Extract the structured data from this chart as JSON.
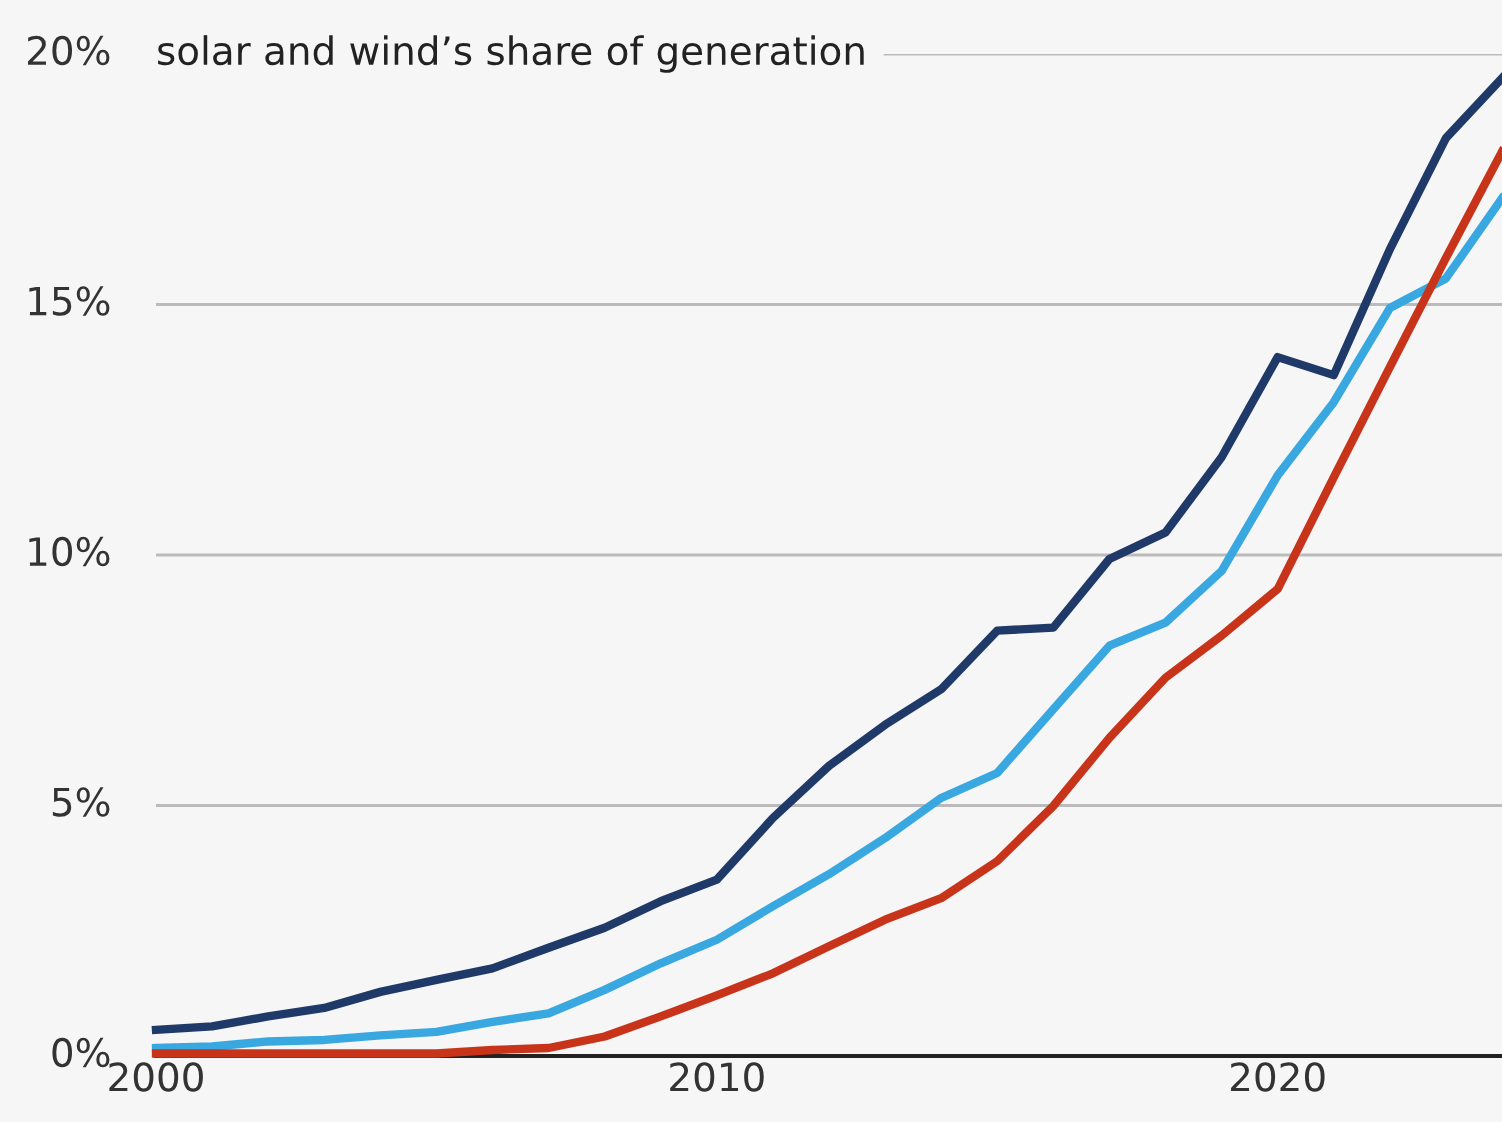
{
  "chart_data": {
    "type": "line",
    "title": "solar and wind’s share of generation",
    "x": [
      2000,
      2001,
      2002,
      2003,
      2004,
      2005,
      2006,
      2007,
      2008,
      2009,
      2010,
      2011,
      2012,
      2013,
      2014,
      2015,
      2016,
      2017,
      2018,
      2019,
      2020,
      2021,
      2022,
      2023,
      2024
    ],
    "series": [
      {
        "color": "#1f3a68",
        "values": [
          0.52,
          0.59,
          0.79,
          0.96,
          1.28,
          1.52,
          1.75,
          2.16,
          2.56,
          3.09,
          3.52,
          4.75,
          5.79,
          6.61,
          7.32,
          8.49,
          8.55,
          9.92,
          10.45,
          11.95,
          13.95,
          13.59,
          16.1,
          18.32,
          19.52
        ]
      },
      {
        "color": "#3aa8e0",
        "values": [
          0.16,
          0.19,
          0.29,
          0.32,
          0.41,
          0.48,
          0.68,
          0.85,
          1.32,
          1.85,
          2.32,
          2.99,
          3.63,
          4.35,
          5.15,
          5.65,
          6.92,
          8.19,
          8.65,
          9.68,
          11.59,
          13.05,
          14.93,
          15.52,
          17.12
        ]
      },
      {
        "color": "#c8341a",
        "values": [
          0.05,
          0.05,
          0.05,
          0.05,
          0.05,
          0.05,
          0.12,
          0.16,
          0.39,
          0.79,
          1.21,
          1.65,
          2.19,
          2.72,
          3.15,
          3.89,
          4.99,
          6.35,
          7.55,
          8.39,
          9.32,
          11.55,
          13.75,
          15.93,
          18.05
        ]
      }
    ],
    "xlim": [
      2000,
      2024
    ],
    "xticks": [
      2000,
      2010,
      2020
    ],
    "ylim": [
      0,
      20
    ],
    "yticks": [
      {
        "value": 0,
        "label": "0%"
      },
      {
        "value": 5,
        "label": "5%"
      },
      {
        "value": 10,
        "label": "10%"
      },
      {
        "value": 15,
        "label": "15%"
      },
      {
        "value": 20,
        "label": "20%"
      }
    ],
    "grid": "y",
    "legend": false,
    "marker": "none",
    "line_style": "solid"
  }
}
